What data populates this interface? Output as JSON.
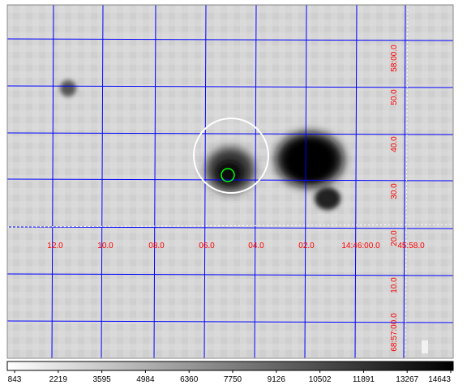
{
  "image": {
    "ra_labels": [
      "12.0",
      "10.0",
      "08.0",
      "06.0",
      "04.0",
      "02.0",
      "14:46:00.0",
      "45:58.0"
    ],
    "dec_labels": [
      "58:00.0",
      "50.0",
      "40.0",
      "30.0",
      "20.0",
      "10.0",
      "68:57:00.0"
    ],
    "label_color": "#ff0000",
    "grid_color": "#0000ff",
    "circle_large_color": "#ffffff",
    "circle_small_color": "#00ff00"
  },
  "colorbar": {
    "tick_labels": [
      "843",
      "2219",
      "3595",
      "4984",
      "6360",
      "7750",
      "9126",
      "10502",
      "11891",
      "13267",
      "14643"
    ]
  }
}
